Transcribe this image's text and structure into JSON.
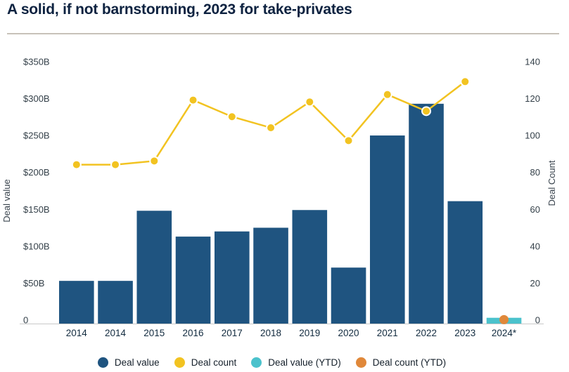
{
  "title": "A solid, if not barnstorming, 2023 for take-privates",
  "colors": {
    "title_text": "#0d2240",
    "divider": "#c7c2b9",
    "bar_navy": "#1f5480",
    "bar_teal": "#4bc2cc",
    "line_yellow": "#f2c321",
    "dot_orange": "#e0883a",
    "axis_line": "#c9c9c9",
    "left_tick_text": "#333f48",
    "right_tick_text": "#333f48",
    "x_tick_text": "#122b3f",
    "axis_title_text": "#3a444e",
    "legend_text": "#15202b"
  },
  "chart_data": {
    "type": "bar+line combo",
    "categories": [
      "2014",
      "2014",
      "2015",
      "2016",
      "2017",
      "2018",
      "2019",
      "2020",
      "2021",
      "2022",
      "2023",
      "2024*"
    ],
    "series": [
      {
        "name": "Deal value",
        "type": "bar",
        "axis": "left",
        "unit": "$B",
        "color": "#1f5480",
        "values": [
          55,
          55,
          150,
          115,
          122,
          127,
          151,
          73,
          252,
          295,
          163,
          null
        ]
      },
      {
        "name": "Deal count",
        "type": "line",
        "axis": "right",
        "color": "#f2c321",
        "values": [
          85,
          85,
          87,
          120,
          111,
          105,
          119,
          98,
          123,
          114,
          130,
          null
        ]
      },
      {
        "name": "Deal value (YTD)",
        "type": "bar",
        "axis": "left",
        "unit": "$B",
        "color": "#4bc2cc",
        "values": [
          null,
          null,
          null,
          null,
          null,
          null,
          null,
          null,
          null,
          null,
          null,
          5
        ]
      },
      {
        "name": "Deal count (YTD)",
        "type": "point",
        "axis": "right",
        "color": "#e0883a",
        "values": [
          null,
          null,
          null,
          null,
          null,
          null,
          null,
          null,
          null,
          null,
          null,
          1
        ]
      }
    ],
    "left_axis": {
      "label": "Deal value",
      "min": 0,
      "max": 350,
      "tick_values": [
        350,
        300,
        250,
        200,
        150,
        100,
        50,
        0
      ],
      "tick_labels": [
        "$350B",
        "$300B",
        "$250B",
        "$200B",
        "$150B",
        "$100B",
        "$50B",
        "0"
      ]
    },
    "right_axis": {
      "label": "Deal Count",
      "min": 0,
      "max": 140,
      "tick_values": [
        140,
        120,
        100,
        80,
        60,
        40,
        20,
        0
      ],
      "tick_labels": [
        "140",
        "120",
        "100",
        "80",
        "60",
        "40",
        "20",
        "0"
      ]
    },
    "grid": false,
    "legend_position": "bottom",
    "legend": [
      {
        "label": "Deal value",
        "color": "#1f5480"
      },
      {
        "label": "Deal count",
        "color": "#f2c321"
      },
      {
        "label": "Deal value (YTD)",
        "color": "#4bc2cc"
      },
      {
        "label": "Deal count (YTD)",
        "color": "#e0883a"
      }
    ]
  }
}
